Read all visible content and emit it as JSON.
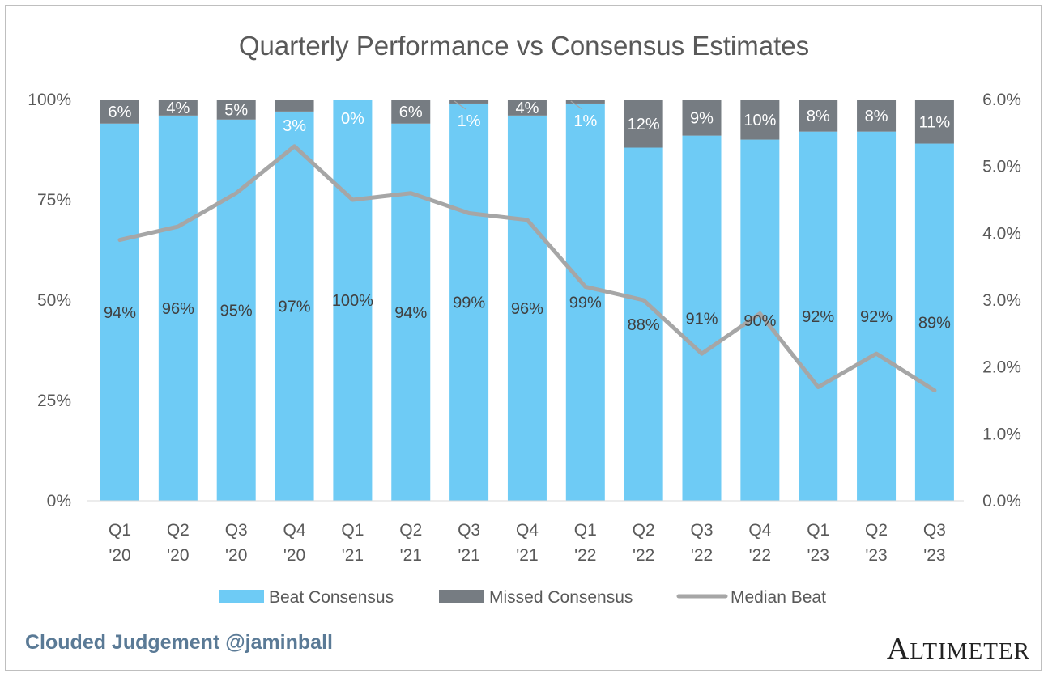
{
  "chart_data": {
    "type": "bar",
    "stacked": true,
    "title": "Quarterly Performance vs Consensus Estimates",
    "categories": [
      [
        "Q1",
        "'20"
      ],
      [
        "Q2",
        "'20"
      ],
      [
        "Q3",
        "'20"
      ],
      [
        "Q4",
        "'20"
      ],
      [
        "Q1",
        "'21"
      ],
      [
        "Q2",
        "'21"
      ],
      [
        "Q3",
        "'21"
      ],
      [
        "Q4",
        "'21"
      ],
      [
        "Q1",
        "'22"
      ],
      [
        "Q2",
        "'22"
      ],
      [
        "Q3",
        "'22"
      ],
      [
        "Q4",
        "'22"
      ],
      [
        "Q1",
        "'23"
      ],
      [
        "Q2",
        "'23"
      ],
      [
        "Q3",
        "'23"
      ]
    ],
    "series": [
      {
        "name": "Beat Consensus",
        "axis": "left",
        "color": "#6ecbf5",
        "values": [
          94,
          96,
          95,
          97,
          100,
          94,
          99,
          96,
          99,
          88,
          91,
          90,
          92,
          92,
          89
        ],
        "labels": [
          "94%",
          "96%",
          "95%",
          "97%",
          "100%",
          "94%",
          "99%",
          "96%",
          "99%",
          "88%",
          "91%",
          "90%",
          "92%",
          "92%",
          "89%"
        ]
      },
      {
        "name": "Missed Consensus",
        "axis": "left",
        "color": "#767c82",
        "values": [
          6,
          4,
          5,
          3,
          0,
          6,
          1,
          4,
          1,
          12,
          9,
          10,
          8,
          8,
          11
        ],
        "labels": [
          "6%",
          "4%",
          "5%",
          "3%",
          "0%",
          "6%",
          "1%",
          "4%",
          "1%",
          "12%",
          "9%",
          "10%",
          "8%",
          "8%",
          "11%"
        ]
      },
      {
        "name": "Median Beat",
        "type": "line",
        "axis": "right",
        "color": "#a6a6a6",
        "values": [
          3.9,
          4.1,
          4.6,
          5.3,
          4.5,
          4.6,
          4.3,
          4.2,
          3.2,
          3.0,
          2.2,
          2.8,
          1.7,
          2.2,
          1.65
        ]
      }
    ],
    "y_left": {
      "ticks": [
        "0%",
        "25%",
        "50%",
        "75%",
        "100%"
      ],
      "range": [
        0,
        100
      ]
    },
    "y_right": {
      "ticks": [
        "0.0%",
        "1.0%",
        "2.0%",
        "3.0%",
        "4.0%",
        "5.0%",
        "6.0%"
      ],
      "range": [
        0,
        6
      ]
    },
    "legend": {
      "placement": "bottom"
    },
    "grid": false
  },
  "footer": {
    "credit": "Clouded Judgement @jaminball",
    "brand_first": "A",
    "brand_rest": "LTIMETER"
  }
}
